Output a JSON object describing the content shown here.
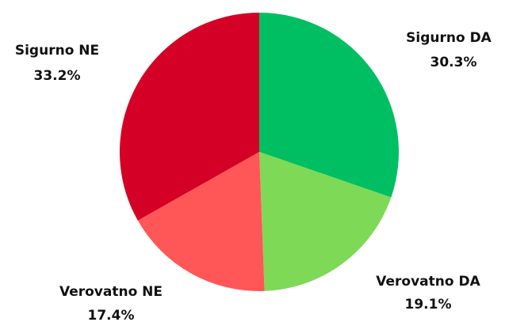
{
  "chart_data": {
    "type": "pie",
    "categories": [
      "Sigurno DA",
      "Verovatno DA",
      "Verovatno NE",
      "Sigurno NE"
    ],
    "values": [
      30.3,
      19.1,
      17.4,
      33.2
    ],
    "value_labels": [
      "30.3%",
      "19.1%",
      "17.4%",
      "33.2%"
    ],
    "colors": [
      "#00bf63",
      "#7ed957",
      "#ff5757",
      "#d50026"
    ]
  }
}
